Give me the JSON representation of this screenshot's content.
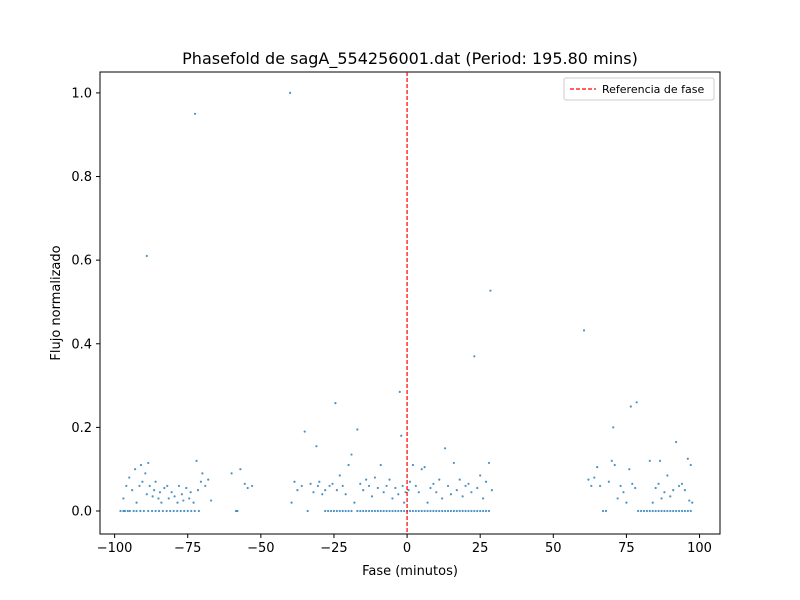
{
  "chart_data": {
    "type": "scatter",
    "title": "Phasefold de sagA_554256001.dat (Period: 195.80 mins)",
    "xlabel": "Fase (minutos)",
    "ylabel": "Flujo normalizado",
    "xlim": [
      -105,
      107
    ],
    "ylim": [
      -0.055,
      1.05
    ],
    "xticks": [
      -100,
      -75,
      -50,
      -25,
      0,
      25,
      50,
      75,
      100
    ],
    "yticks": [
      0.0,
      0.2,
      0.4,
      0.6,
      0.8,
      1.0
    ],
    "xtick_labels": [
      "−100",
      "−75",
      "−50",
      "−25",
      "0",
      "25",
      "50",
      "75",
      "100"
    ],
    "ytick_labels": [
      "0.0",
      "0.2",
      "0.4",
      "0.6",
      "0.8",
      "1.0"
    ],
    "grid": false,
    "legend_position": "top-right",
    "series": [
      {
        "color": "#1f77b4",
        "points": [
          [
            -98,
            0.0
          ],
          [
            -97,
            0.0
          ],
          [
            -96.5,
            0.0
          ],
          [
            -95.5,
            0.0
          ],
          [
            -94.8,
            0.0
          ],
          [
            -93.5,
            0.0
          ],
          [
            -92.5,
            0.0
          ],
          [
            -91.2,
            0.0
          ],
          [
            -90,
            0.0
          ],
          [
            -88.5,
            0.0
          ],
          [
            -87.2,
            0.0
          ],
          [
            -86,
            0.0
          ],
          [
            -84.8,
            0.0
          ],
          [
            -83.5,
            0.0
          ],
          [
            -82.2,
            0.0
          ],
          [
            -81,
            0.0
          ],
          [
            -79.8,
            0.0
          ],
          [
            -78.6,
            0.0
          ],
          [
            -77.4,
            0.0
          ],
          [
            -76.2,
            0.0
          ],
          [
            -75,
            0.0
          ],
          [
            -73.8,
            0.0
          ],
          [
            -72.6,
            0.0
          ],
          [
            -71.2,
            0.0
          ],
          [
            -97,
            0.03
          ],
          [
            -96,
            0.06
          ],
          [
            -95,
            0.08
          ],
          [
            -94,
            0.05
          ],
          [
            -93,
            0.1
          ],
          [
            -92.5,
            0.02
          ],
          [
            -91.5,
            0.06
          ],
          [
            -91,
            0.11
          ],
          [
            -90.5,
            0.07
          ],
          [
            -89.5,
            0.09
          ],
          [
            -89,
            0.04
          ],
          [
            -88.5,
            0.115
          ],
          [
            -88,
            0.06
          ],
          [
            -87,
            0.035
          ],
          [
            -86.5,
            0.05
          ],
          [
            -86,
            0.07
          ],
          [
            -85,
            0.03
          ],
          [
            -84.5,
            0.045
          ],
          [
            -84,
            0.02
          ],
          [
            -83,
            0.055
          ],
          [
            -82,
            0.06
          ],
          [
            -81.5,
            0.03
          ],
          [
            -80.5,
            0.045
          ],
          [
            -79.5,
            0.035
          ],
          [
            -78.5,
            0.02
          ],
          [
            -78,
            0.06
          ],
          [
            -77,
            0.04
          ],
          [
            -76.5,
            0.025
          ],
          [
            -75.5,
            0.055
          ],
          [
            -74.5,
            0.03
          ],
          [
            -74,
            0.045
          ],
          [
            -73,
            0.02
          ],
          [
            -72,
            0.12
          ],
          [
            -71.5,
            0.05
          ],
          [
            -70.5,
            0.07
          ],
          [
            -70,
            0.09
          ],
          [
            -69,
            0.06
          ],
          [
            -68,
            0.075
          ],
          [
            -67,
            0.025
          ],
          [
            -72.5,
            0.95
          ],
          [
            -89,
            0.61
          ],
          [
            -60,
            0.09
          ],
          [
            -58.5,
            0.0
          ],
          [
            -58,
            0.0
          ],
          [
            -57,
            0.1
          ],
          [
            -55.5,
            0.065
          ],
          [
            -54.5,
            0.055
          ],
          [
            -53,
            0.06
          ],
          [
            -40,
            1.0
          ],
          [
            -39.5,
            0.02
          ],
          [
            -38.5,
            0.07
          ],
          [
            -37.5,
            0.05
          ],
          [
            -36,
            0.06
          ],
          [
            -35,
            0.19
          ],
          [
            -34,
            0.0
          ],
          [
            -33,
            0.065
          ],
          [
            -32,
            0.045
          ],
          [
            -31,
            0.155
          ],
          [
            -30.5,
            0.06
          ],
          [
            -30,
            0.07
          ],
          [
            -29,
            0.04
          ],
          [
            -28,
            0.05
          ],
          [
            -26.5,
            0.06
          ],
          [
            -25.5,
            0.065
          ],
          [
            -24.5,
            0.258
          ],
          [
            -24,
            0.05
          ],
          [
            -23,
            0.085
          ],
          [
            -22,
            0.06
          ],
          [
            -21,
            0.04
          ],
          [
            -20,
            0.11
          ],
          [
            -19,
            0.135
          ],
          [
            -18,
            0.02
          ],
          [
            -17,
            0.195
          ],
          [
            -16,
            0.065
          ],
          [
            -15,
            0.05
          ],
          [
            -14,
            0.075
          ],
          [
            -13,
            0.06
          ],
          [
            -12,
            0.035
          ],
          [
            -11,
            0.08
          ],
          [
            -10,
            0.055
          ],
          [
            -9,
            0.11
          ],
          [
            -8,
            0.045
          ],
          [
            -7,
            0.06
          ],
          [
            -6,
            0.075
          ],
          [
            -5,
            0.03
          ],
          [
            -4,
            0.055
          ],
          [
            -3,
            0.04
          ],
          [
            -2.5,
            0.285
          ],
          [
            -2,
            0.18
          ],
          [
            -1.5,
            0.06
          ],
          [
            -1,
            0.02
          ],
          [
            -0.5,
            0.045
          ],
          [
            -28,
            0.0
          ],
          [
            -27,
            0.0
          ],
          [
            -26,
            0.0
          ],
          [
            -25,
            0.0
          ],
          [
            -24,
            0.0
          ],
          [
            -23,
            0.0
          ],
          [
            -22,
            0.0
          ],
          [
            -21,
            0.0
          ],
          [
            -20,
            0.0
          ],
          [
            -19,
            0.0
          ],
          [
            -17,
            0.0
          ],
          [
            -16,
            0.0
          ],
          [
            -15,
            0.0
          ],
          [
            -14,
            0.0
          ],
          [
            -13,
            0.0
          ],
          [
            -12,
            0.0
          ],
          [
            -11,
            0.0
          ],
          [
            -10,
            0.0
          ],
          [
            -9,
            0.0
          ],
          [
            -8,
            0.0
          ],
          [
            -7,
            0.0
          ],
          [
            -6,
            0.0
          ],
          [
            -5,
            0.0
          ],
          [
            -4,
            0.0
          ],
          [
            -3,
            0.0
          ],
          [
            -2,
            0.0
          ],
          [
            -1,
            0.0
          ],
          [
            0,
            0.0
          ],
          [
            1,
            0.0
          ],
          [
            2,
            0.0
          ],
          [
            3,
            0.0
          ],
          [
            4,
            0.0
          ],
          [
            5,
            0.0
          ],
          [
            6,
            0.0
          ],
          [
            7,
            0.0
          ],
          [
            8,
            0.0
          ],
          [
            9,
            0.0
          ],
          [
            10,
            0.0
          ],
          [
            11,
            0.0
          ],
          [
            12,
            0.0
          ],
          [
            13,
            0.0
          ],
          [
            14,
            0.0
          ],
          [
            15,
            0.0
          ],
          [
            16,
            0.0
          ],
          [
            17,
            0.0
          ],
          [
            18,
            0.0
          ],
          [
            19,
            0.0
          ],
          [
            20,
            0.0
          ],
          [
            21,
            0.0
          ],
          [
            22,
            0.0
          ],
          [
            23,
            0.0
          ],
          [
            24,
            0.0
          ],
          [
            25,
            0.0
          ],
          [
            26,
            0.0
          ],
          [
            27,
            0.0
          ],
          [
            28,
            0.0
          ],
          [
            0.5,
            0.05
          ],
          [
            1,
            0.07
          ],
          [
            2,
            0.11
          ],
          [
            3,
            0.06
          ],
          [
            4,
            0.045
          ],
          [
            5,
            0.1
          ],
          [
            6,
            0.105
          ],
          [
            7,
            0.02
          ],
          [
            8,
            0.055
          ],
          [
            9,
            0.065
          ],
          [
            10,
            0.045
          ],
          [
            11,
            0.075
          ],
          [
            12,
            0.03
          ],
          [
            13,
            0.15
          ],
          [
            14,
            0.06
          ],
          [
            15,
            0.04
          ],
          [
            16,
            0.115
          ],
          [
            17,
            0.05
          ],
          [
            18,
            0.075
          ],
          [
            19,
            0.035
          ],
          [
            20,
            0.06
          ],
          [
            21,
            0.065
          ],
          [
            22,
            0.045
          ],
          [
            23,
            0.37
          ],
          [
            24,
            0.055
          ],
          [
            25,
            0.085
          ],
          [
            26,
            0.03
          ],
          [
            27,
            0.07
          ],
          [
            28,
            0.115
          ],
          [
            28.5,
            0.527
          ],
          [
            29,
            0.05
          ],
          [
            60.5,
            0.432
          ],
          [
            62,
            0.075
          ],
          [
            63,
            0.06
          ],
          [
            64,
            0.08
          ],
          [
            65,
            0.105
          ],
          [
            66,
            0.06
          ],
          [
            67,
            0.0
          ],
          [
            68,
            0.0
          ],
          [
            69,
            0.07
          ],
          [
            70,
            0.12
          ],
          [
            70.5,
            0.2
          ],
          [
            71,
            0.11
          ],
          [
            72,
            0.03
          ],
          [
            73,
            0.06
          ],
          [
            74,
            0.045
          ],
          [
            75,
            0.02
          ],
          [
            76,
            0.1
          ],
          [
            76.5,
            0.25
          ],
          [
            77,
            0.065
          ],
          [
            78,
            0.055
          ],
          [
            78.5,
            0.26
          ],
          [
            79,
            0.0
          ],
          [
            80,
            0.0
          ],
          [
            81,
            0.0
          ],
          [
            82,
            0.0
          ],
          [
            83,
            0.12
          ],
          [
            84,
            0.02
          ],
          [
            85,
            0.055
          ],
          [
            86,
            0.065
          ],
          [
            86.5,
            0.12
          ],
          [
            87,
            0.03
          ],
          [
            88,
            0.045
          ],
          [
            89,
            0.085
          ],
          [
            90,
            0.035
          ],
          [
            91,
            0.05
          ],
          [
            92,
            0.165
          ],
          [
            93,
            0.06
          ],
          [
            94,
            0.065
          ],
          [
            95,
            0.05
          ],
          [
            96,
            0.125
          ],
          [
            97,
            0.11
          ],
          [
            97.5,
            0.02
          ],
          [
            96.5,
            0.025
          ],
          [
            83,
            0.0
          ],
          [
            84,
            0.0
          ],
          [
            85,
            0.0
          ],
          [
            86,
            0.0
          ],
          [
            87,
            0.0
          ],
          [
            88,
            0.0
          ],
          [
            89,
            0.0
          ],
          [
            90,
            0.0
          ],
          [
            91,
            0.0
          ],
          [
            92,
            0.0
          ],
          [
            93,
            0.0
          ],
          [
            94,
            0.0
          ],
          [
            95,
            0.0
          ],
          [
            96,
            0.0
          ],
          [
            97,
            0.0
          ]
        ]
      }
    ],
    "reference_line": {
      "x": 0,
      "label": "Referencia de fase",
      "color": "#ff0000",
      "style": "dashed"
    }
  }
}
